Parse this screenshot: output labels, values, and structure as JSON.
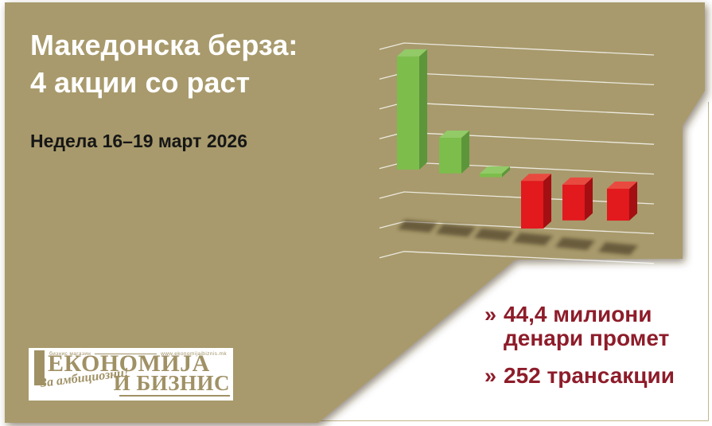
{
  "colors": {
    "background_khaki": "#a89a6c",
    "canvas_white": "#ffffff",
    "title_text": "#ffffff",
    "subtitle_text": "#161616",
    "stat_text": "#8e1c2a",
    "logo_gold": "#a09165",
    "frame_line": "#c3b68c",
    "gridline": "#ffffff",
    "bar_positive_front": "#7dbd4c",
    "bar_positive_side": "#5d963a",
    "bar_positive_top": "#92ca67",
    "bar_negative_front": "#e2191d",
    "bar_negative_side": "#a30f13",
    "bar_negative_top": "#e94a40",
    "floor_shadow": "#332c16"
  },
  "header": {
    "title_line1": "Македонска берза:",
    "title_line2": "4 акции со раст",
    "subtitle": "Недела 16–19 март 2026"
  },
  "stats": {
    "bullet": "»",
    "items": [
      {
        "line1": "44,4 милиони",
        "line2": "денари промет"
      },
      {
        "line1": "252 трансакции",
        "line2": ""
      }
    ]
  },
  "logo": {
    "tagline": "бизнис магазин",
    "website": "www.ekonomijaibiznis.mk",
    "name_line1": "ЕКОНОМИЈА",
    "name_line2": "И БИЗНИС",
    "slogan": "За амбициозни!"
  },
  "chart_data": {
    "type": "bar",
    "style": "3d-perspective",
    "title": "",
    "xlabel": "",
    "ylabel": "",
    "bar_count": 6,
    "values": [
      3.8,
      1.2,
      0.12,
      -1.6,
      -1.2,
      -1.07
    ],
    "value_note": "relative bar heights in gridline units; the chart shows no numeric axis or category labels; green bars = rising stocks, red bars = falling stocks",
    "gridline_count": 8,
    "legend": false,
    "positive_color": "#7dbd4c",
    "negative_color": "#e2191d"
  }
}
